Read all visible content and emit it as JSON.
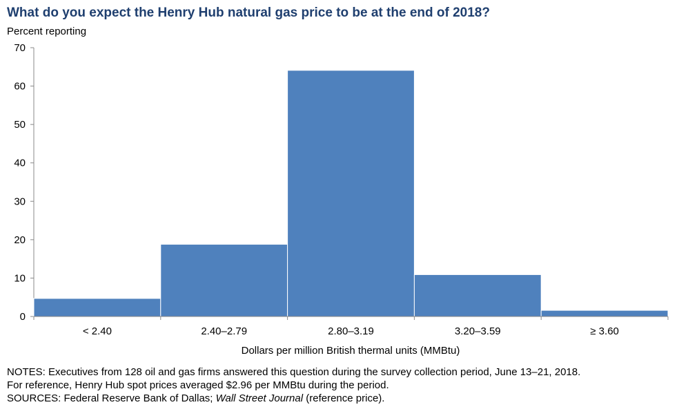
{
  "chart_data": {
    "type": "bar",
    "title": "What do you expect the Henry Hub natural gas price to be at the end of 2018?",
    "ylabel": "Percent reporting",
    "xlabel": "Dollars per million British thermal units (MMBtu)",
    "categories": [
      "< 2.40",
      "2.40–2.79",
      "2.80–3.19",
      "3.20–3.59",
      "≥ 3.60"
    ],
    "values": [
      4.7,
      18.8,
      64.1,
      10.9,
      1.6
    ],
    "ylim": [
      0,
      70
    ],
    "yticks": [
      "0",
      "10",
      "20",
      "30",
      "40",
      "50",
      "60",
      "70"
    ],
    "bar_color": "#4f81bd",
    "grid": false
  },
  "notes": {
    "line1": "NOTES: Executives from 128 oil and gas firms answered this question during the survey collection period, June 13–21, 2018.",
    "line2": "For reference, Henry Hub spot prices averaged $2.96 per MMBtu during the period.",
    "sources_prefix": "SOURCES: Federal Reserve Bank of Dallas; ",
    "sources_italic": "Wall Street Journal",
    "sources_suffix": " (reference price)."
  }
}
